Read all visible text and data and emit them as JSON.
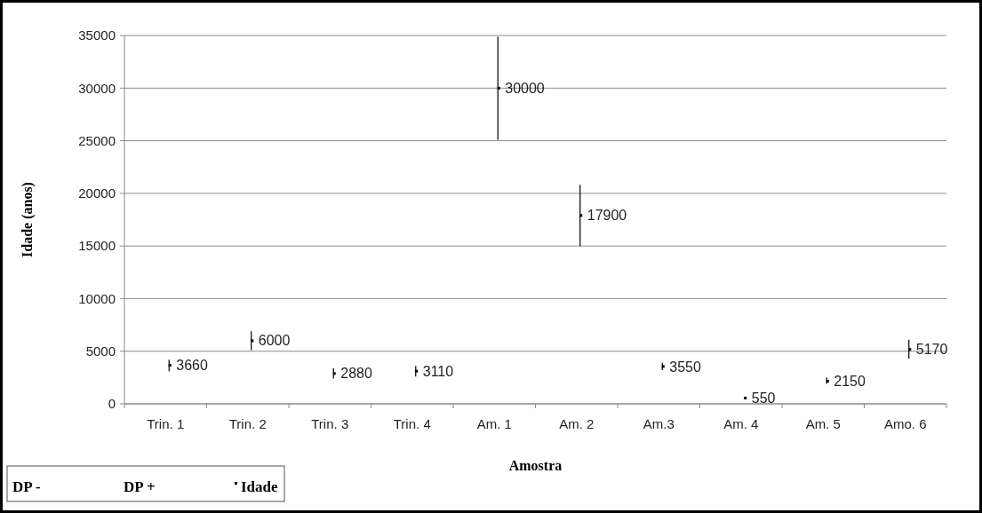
{
  "chart_data": {
    "type": "scatter",
    "xlabel": "Amostra",
    "ylabel": "Idade (anos)",
    "categories": [
      "Trin. 1",
      "Trin. 2",
      "Trin. 3",
      "Trin. 4",
      "Am. 1",
      "Am. 2",
      "Am.3",
      "Am. 4",
      "Am. 5",
      "Amo. 6"
    ],
    "series": [
      {
        "name": "Idade",
        "color": "#000000",
        "values": [
          3660,
          6000,
          2880,
          3110,
          30000,
          17900,
          3550,
          550,
          2150,
          5170
        ],
        "errors": [
          [
            3100,
            4200
          ],
          [
            5100,
            6900
          ],
          [
            2400,
            3400
          ],
          [
            2600,
            3600
          ],
          [
            25100,
            34900
          ],
          [
            15000,
            20800
          ],
          [
            3200,
            3900
          ],
          [
            450,
            650
          ],
          [
            1900,
            2500
          ],
          [
            4300,
            6100
          ]
        ]
      }
    ],
    "annotations": [
      "DP -",
      "DP +"
    ],
    "marker": "square",
    "data_labels": true,
    "ylim": [
      0,
      35000
    ],
    "yticks": [
      0,
      5000,
      10000,
      15000,
      20000,
      25000,
      30000,
      35000
    ],
    "grid": "y",
    "legend": "bottom left"
  }
}
